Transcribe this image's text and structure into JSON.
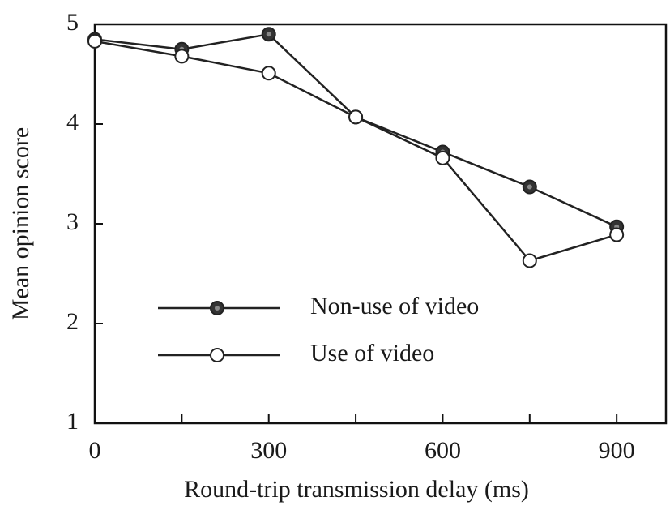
{
  "chart_data": {
    "type": "line",
    "x_label": "Round-trip transmission delay (ms)",
    "y_label": "Mean opinion score",
    "x": [
      0,
      150,
      300,
      450,
      600,
      750,
      900
    ],
    "series": [
      {
        "name": "Non-use of video",
        "color": "#222222",
        "marker": "filled",
        "values": [
          4.85,
          4.75,
          4.9,
          4.07,
          3.72,
          3.37,
          2.97
        ]
      },
      {
        "name": "Use of video",
        "color": "#222222",
        "marker": "open",
        "values": [
          4.83,
          4.68,
          4.51,
          4.07,
          3.66,
          2.63,
          2.89
        ]
      }
    ],
    "xlim": [
      0,
      985
    ],
    "xticks": [
      0,
      300,
      600,
      900
    ],
    "xminor_ticks": [
      150,
      450,
      750
    ],
    "ylim": [
      1,
      5
    ],
    "yticks": [
      1,
      2,
      3,
      4,
      5
    ],
    "grid": false,
    "legend": "lower left"
  }
}
